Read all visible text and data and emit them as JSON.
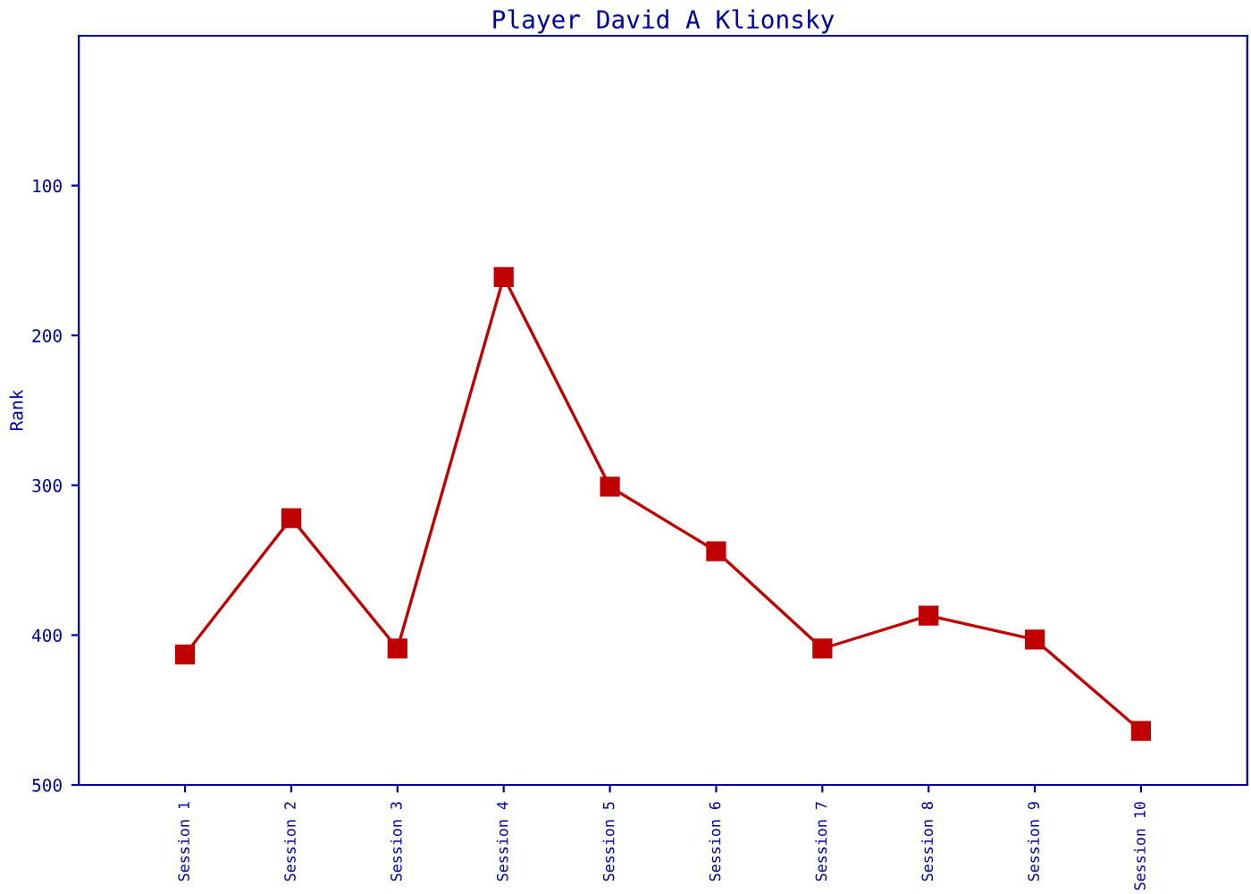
{
  "chart_data": {
    "type": "line",
    "title": "Player David A Klionsky",
    "ylabel": "Rank",
    "categories": [
      "Session 1",
      "Session 2",
      "Session 3",
      "Session 4",
      "Session 5",
      "Session 6",
      "Session 7",
      "Session 8",
      "Session 9",
      "Session 10"
    ],
    "series": [
      {
        "color": "#c00000",
        "values": [
          413,
          322,
          409,
          161,
          301,
          344,
          409,
          387,
          403,
          464
        ]
      }
    ],
    "ylim": [
      500,
      0
    ],
    "yticks": [
      100,
      200,
      300,
      400,
      500
    ],
    "marker": "square",
    "line_style": "solid",
    "grid": false,
    "legend": false
  }
}
